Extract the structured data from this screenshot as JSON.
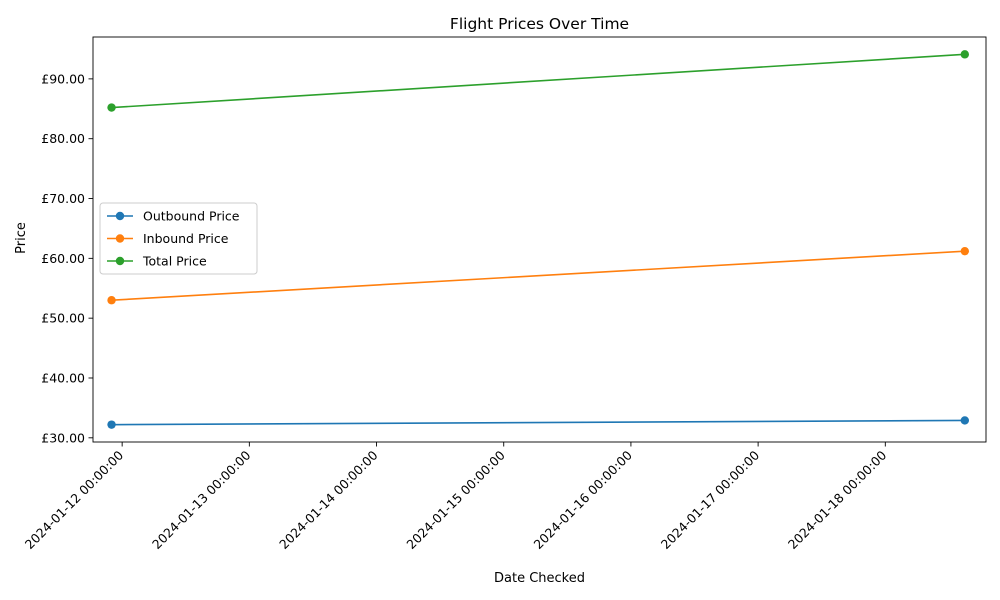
{
  "chart_data": {
    "type": "line",
    "title": "Flight Prices Over Time",
    "xlabel": "Date Checked",
    "ylabel": "Price",
    "x": [
      "2024-01-11 22:00:00",
      "2024-01-18 15:00:00"
    ],
    "xlim": [
      "2024-01-11 18:30:00",
      "2024-01-18 19:00:00"
    ],
    "x_ticks": [
      "2024-01-12 00:00:00",
      "2024-01-13 00:00:00",
      "2024-01-14 00:00:00",
      "2024-01-15 00:00:00",
      "2024-01-16 00:00:00",
      "2024-01-17 00:00:00",
      "2024-01-18 00:00:00"
    ],
    "ylim": [
      29.3,
      97.0
    ],
    "y_ticks": [
      30,
      40,
      50,
      60,
      70,
      80,
      90
    ],
    "y_tick_labels": [
      "£30.00",
      "£40.00",
      "£50.00",
      "£60.00",
      "£70.00",
      "£80.00",
      "£90.00"
    ],
    "legend_position": "center-left",
    "grid": false,
    "series": [
      {
        "name": "Outbound Price",
        "color": "#1f77b4",
        "values": [
          32.2,
          32.9
        ]
      },
      {
        "name": "Inbound Price",
        "color": "#ff7f0e",
        "values": [
          53.0,
          61.2
        ]
      },
      {
        "name": "Total Price",
        "color": "#2ca02c",
        "values": [
          85.2,
          94.1
        ]
      }
    ]
  }
}
